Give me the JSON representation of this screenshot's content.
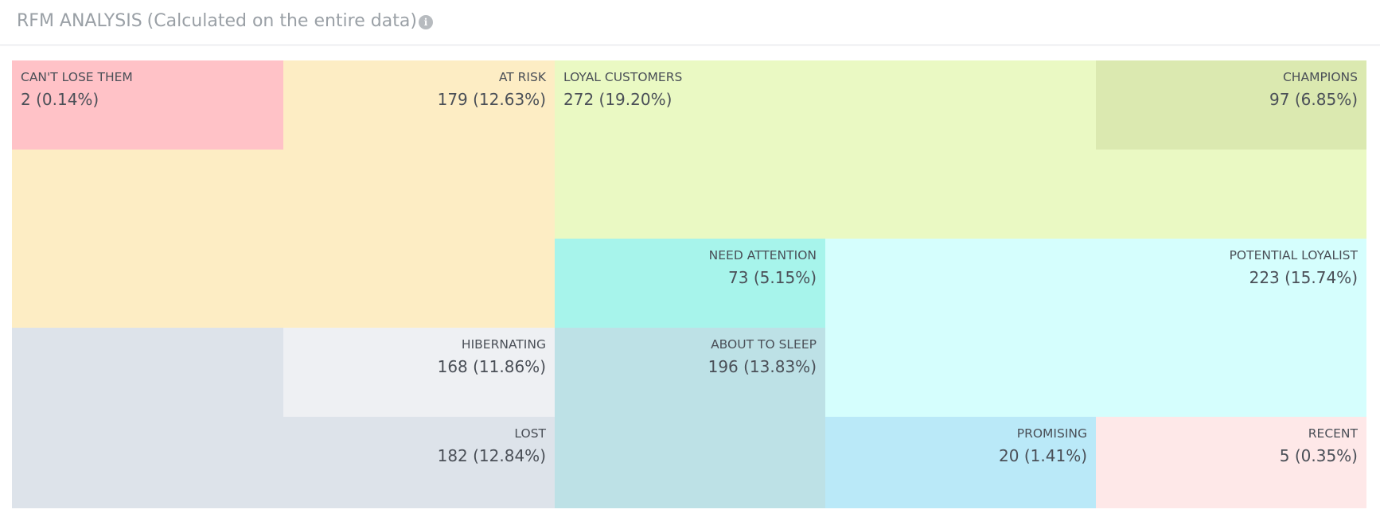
{
  "header": {
    "title": "RFM ANALYSIS",
    "subtitle": "(Calculated on the entire data)",
    "info_icon": "info-icon"
  },
  "segments": {
    "cant_lose_them": {
      "name": "CAN'T LOSE THEM",
      "value": "2 (0.14%)",
      "color": "#ffc2c7"
    },
    "at_risk": {
      "name": "AT RISK",
      "value": "179 (12.63%)",
      "color": "#fdedc4"
    },
    "loyal_customers": {
      "name": "LOYAL CUSTOMERS",
      "value": "272 (19.20%)",
      "color": "#eaf9c3"
    },
    "champions": {
      "name": "CHAMPIONS",
      "value": "97 (6.85%)",
      "color": "#dbe9b0"
    },
    "need_attention": {
      "name": "NEED ATTENTION",
      "value": "73 (5.15%)",
      "color": "#a7f4eb"
    },
    "potential_loyalist": {
      "name": "POTENTIAL LOYALIST",
      "value": "223 (15.74%)",
      "color": "#d5fefd"
    },
    "hibernating": {
      "name": "HIBERNATING",
      "value": "168 (11.86%)",
      "color": "#eef0f3"
    },
    "about_to_sleep": {
      "name": "ABOUT TO SLEEP",
      "value": "196 (13.83%)",
      "color": "#bde1e6"
    },
    "lost": {
      "name": "LOST",
      "value": "182 (12.84%)",
      "color": "#dde3ea"
    },
    "promising": {
      "name": "PROMISING",
      "value": "20 (1.41%)",
      "color": "#bae9f8"
    },
    "recent": {
      "name": "RECENT",
      "value": "5 (0.35%)",
      "color": "#fee8e8"
    }
  }
}
